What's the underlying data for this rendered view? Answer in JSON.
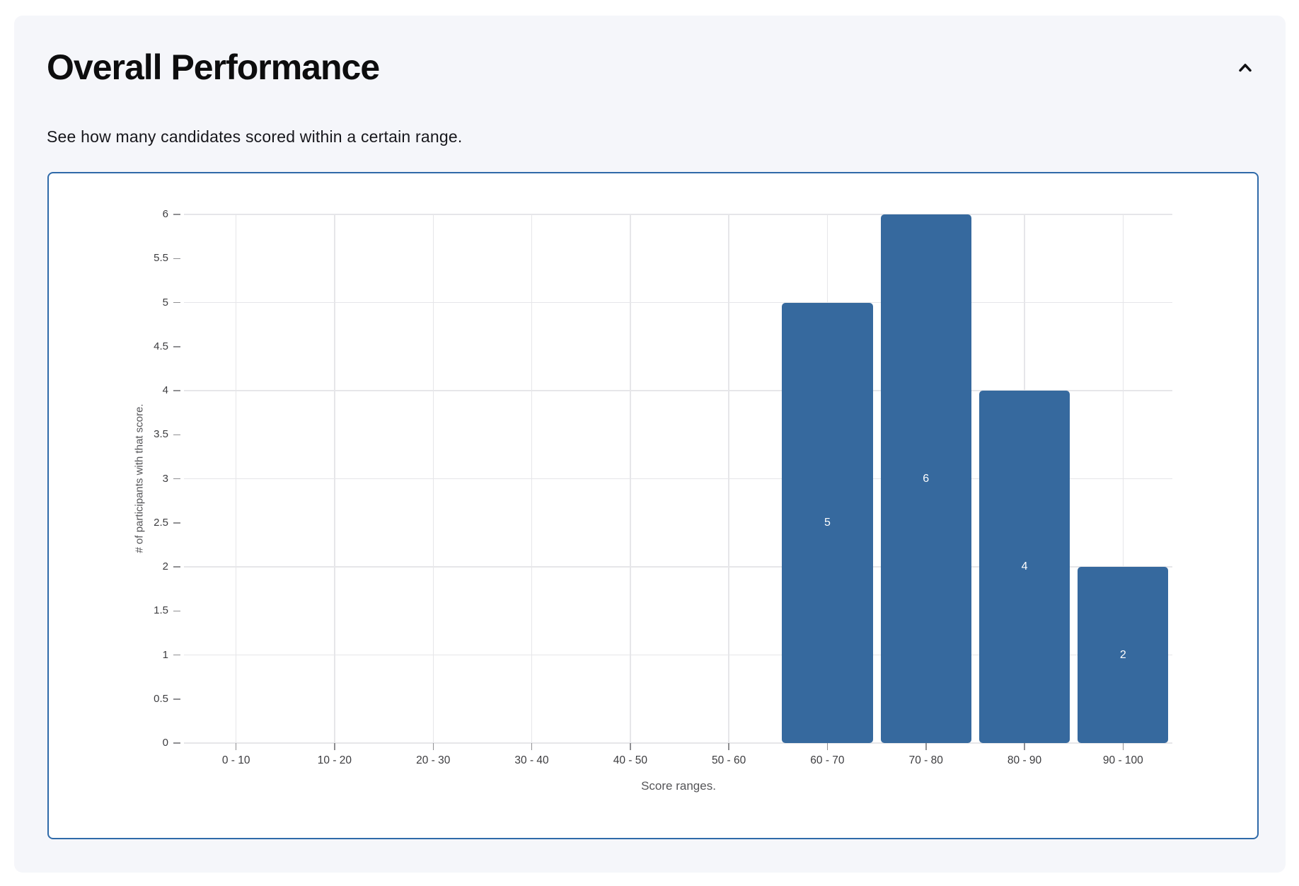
{
  "card": {
    "title": "Overall Performance",
    "subtitle": "See how many candidates scored within a certain range.",
    "collapse_icon": "chevron-up-icon"
  },
  "chart_data": {
    "type": "bar",
    "title": "",
    "categories": [
      "0 - 10",
      "10 - 20",
      "20 - 30",
      "30 - 40",
      "40 - 50",
      "50 - 60",
      "60 - 70",
      "70 - 80",
      "80 - 90",
      "90 - 100"
    ],
    "values": [
      0,
      0,
      0,
      0,
      0,
      0,
      5,
      6,
      4,
      2
    ],
    "bar_value_labels": [
      "",
      "",
      "",
      "",
      "",
      "",
      "5",
      "6",
      "4",
      "2"
    ],
    "xlabel": "Score ranges.",
    "ylabel": "# of participants with that score.",
    "ylim": [
      0,
      6
    ],
    "ytick_step": 0.5,
    "yticks": [
      "0",
      "0.5",
      "1",
      "1.5",
      "2",
      "2.5",
      "3",
      "3.5",
      "4",
      "4.5",
      "5",
      "5.5",
      "6"
    ],
    "grid": true,
    "legend": "none",
    "bar_color": "#36699E",
    "value_label_color": "#ffffff"
  },
  "colors": {
    "page_bg": "#ffffff",
    "card_bg": "#f5f6fa",
    "chart_border": "#2f6aa9",
    "gridline": "#e6e6e9",
    "tick": "#8f8f92",
    "tick_label": "#3c3c3f",
    "axis_caption": "#555558",
    "title": "#0d0d0e",
    "subtitle": "#17171c"
  }
}
